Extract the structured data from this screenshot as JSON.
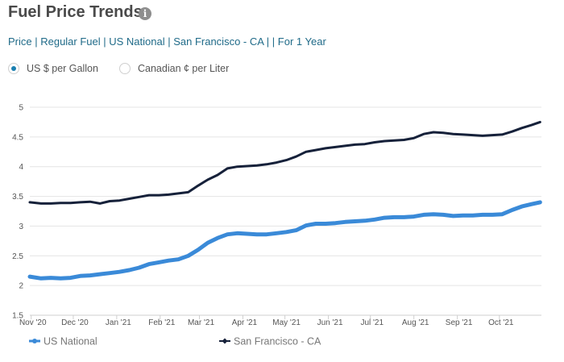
{
  "header": {
    "title": "Fuel Price Trends",
    "info_icon": "info-icon",
    "breadcrumb": "Price | Regular Fuel | US National | San Francisco - CA |  | For 1 Year"
  },
  "units": {
    "options": [
      {
        "label": "US $ per Gallon",
        "selected": true
      },
      {
        "label": "Canadian ¢ per Liter",
        "selected": false
      }
    ]
  },
  "colors": {
    "us_national": "#3a8ad8",
    "san_francisco": "#16213a",
    "accent": "#1a7fb0"
  },
  "chart_data": {
    "type": "line",
    "title": "",
    "xlabel": "",
    "ylabel": "",
    "ylim": [
      1.5,
      5
    ],
    "yticks": [
      "1.5",
      "2",
      "2.5",
      "3",
      "3.5",
      "4",
      "4.5",
      "5"
    ],
    "xlim": [
      "2020-10-31",
      "2021-10-31"
    ],
    "xticks": [
      {
        "label": "Nov '20",
        "date": "2020-11-01"
      },
      {
        "label": "Dec '20",
        "date": "2020-12-01"
      },
      {
        "label": "Jan '21",
        "date": "2021-01-01"
      },
      {
        "label": "Feb '21",
        "date": "2021-02-01"
      },
      {
        "label": "Mar '21",
        "date": "2021-03-01"
      },
      {
        "label": "Apr '21",
        "date": "2021-04-01"
      },
      {
        "label": "May '21",
        "date": "2021-05-01"
      },
      {
        "label": "Jun '21",
        "date": "2021-06-01"
      },
      {
        "label": "Jul '21",
        "date": "2021-07-01"
      },
      {
        "label": "Aug '21",
        "date": "2021-08-01"
      },
      {
        "label": "Sep '21",
        "date": "2021-09-01"
      },
      {
        "label": "Oct '21",
        "date": "2021-10-01"
      }
    ],
    "grid": true,
    "legend": "bottom-left",
    "series": [
      {
        "name": "US National",
        "color": "#3a8ad8",
        "points": [
          [
            "2020-10-31",
            2.15
          ],
          [
            "2020-11-08",
            2.12
          ],
          [
            "2020-11-15",
            2.13
          ],
          [
            "2020-11-22",
            2.12
          ],
          [
            "2020-11-29",
            2.13
          ],
          [
            "2020-12-06",
            2.16
          ],
          [
            "2020-12-13",
            2.17
          ],
          [
            "2020-12-20",
            2.19
          ],
          [
            "2020-12-27",
            2.21
          ],
          [
            "2021-01-03",
            2.23
          ],
          [
            "2021-01-10",
            2.26
          ],
          [
            "2021-01-17",
            2.3
          ],
          [
            "2021-01-24",
            2.36
          ],
          [
            "2021-01-31",
            2.39
          ],
          [
            "2021-02-07",
            2.42
          ],
          [
            "2021-02-14",
            2.44
          ],
          [
            "2021-02-21",
            2.5
          ],
          [
            "2021-02-28",
            2.6
          ],
          [
            "2021-03-07",
            2.72
          ],
          [
            "2021-03-14",
            2.8
          ],
          [
            "2021-03-21",
            2.86
          ],
          [
            "2021-03-28",
            2.88
          ],
          [
            "2021-04-04",
            2.87
          ],
          [
            "2021-04-11",
            2.86
          ],
          [
            "2021-04-18",
            2.86
          ],
          [
            "2021-04-25",
            2.88
          ],
          [
            "2021-05-02",
            2.9
          ],
          [
            "2021-05-09",
            2.93
          ],
          [
            "2021-05-16",
            3.01
          ],
          [
            "2021-05-23",
            3.04
          ],
          [
            "2021-05-30",
            3.04
          ],
          [
            "2021-06-06",
            3.05
          ],
          [
            "2021-06-13",
            3.07
          ],
          [
            "2021-06-20",
            3.08
          ],
          [
            "2021-06-27",
            3.09
          ],
          [
            "2021-07-04",
            3.11
          ],
          [
            "2021-07-11",
            3.14
          ],
          [
            "2021-07-18",
            3.15
          ],
          [
            "2021-07-25",
            3.15
          ],
          [
            "2021-08-01",
            3.16
          ],
          [
            "2021-08-08",
            3.19
          ],
          [
            "2021-08-15",
            3.2
          ],
          [
            "2021-08-22",
            3.19
          ],
          [
            "2021-08-29",
            3.17
          ],
          [
            "2021-09-05",
            3.18
          ],
          [
            "2021-09-12",
            3.18
          ],
          [
            "2021-09-19",
            3.19
          ],
          [
            "2021-09-26",
            3.19
          ],
          [
            "2021-10-03",
            3.2
          ],
          [
            "2021-10-10",
            3.27
          ],
          [
            "2021-10-17",
            3.33
          ],
          [
            "2021-10-24",
            3.37
          ],
          [
            "2021-10-30",
            3.4
          ]
        ]
      },
      {
        "name": "San Francisco - CA",
        "color": "#16213a",
        "points": [
          [
            "2020-10-31",
            3.4
          ],
          [
            "2020-11-08",
            3.38
          ],
          [
            "2020-11-15",
            3.38
          ],
          [
            "2020-11-22",
            3.39
          ],
          [
            "2020-11-29",
            3.39
          ],
          [
            "2020-12-06",
            3.4
          ],
          [
            "2020-12-13",
            3.41
          ],
          [
            "2020-12-20",
            3.38
          ],
          [
            "2020-12-27",
            3.42
          ],
          [
            "2021-01-03",
            3.43
          ],
          [
            "2021-01-10",
            3.46
          ],
          [
            "2021-01-17",
            3.49
          ],
          [
            "2021-01-24",
            3.52
          ],
          [
            "2021-01-31",
            3.52
          ],
          [
            "2021-02-07",
            3.53
          ],
          [
            "2021-02-14",
            3.55
          ],
          [
            "2021-02-21",
            3.57
          ],
          [
            "2021-02-28",
            3.68
          ],
          [
            "2021-03-07",
            3.78
          ],
          [
            "2021-03-14",
            3.86
          ],
          [
            "2021-03-21",
            3.97
          ],
          [
            "2021-03-28",
            4.0
          ],
          [
            "2021-04-04",
            4.01
          ],
          [
            "2021-04-11",
            4.02
          ],
          [
            "2021-04-18",
            4.04
          ],
          [
            "2021-04-25",
            4.07
          ],
          [
            "2021-05-02",
            4.11
          ],
          [
            "2021-05-09",
            4.17
          ],
          [
            "2021-05-16",
            4.25
          ],
          [
            "2021-05-23",
            4.28
          ],
          [
            "2021-05-30",
            4.31
          ],
          [
            "2021-06-06",
            4.33
          ],
          [
            "2021-06-13",
            4.35
          ],
          [
            "2021-06-20",
            4.37
          ],
          [
            "2021-06-27",
            4.38
          ],
          [
            "2021-07-04",
            4.41
          ],
          [
            "2021-07-11",
            4.43
          ],
          [
            "2021-07-18",
            4.44
          ],
          [
            "2021-07-25",
            4.45
          ],
          [
            "2021-08-01",
            4.48
          ],
          [
            "2021-08-08",
            4.55
          ],
          [
            "2021-08-15",
            4.58
          ],
          [
            "2021-08-22",
            4.57
          ],
          [
            "2021-08-29",
            4.55
          ],
          [
            "2021-09-05",
            4.54
          ],
          [
            "2021-09-12",
            4.53
          ],
          [
            "2021-09-19",
            4.52
          ],
          [
            "2021-09-26",
            4.53
          ],
          [
            "2021-10-03",
            4.54
          ],
          [
            "2021-10-10",
            4.59
          ],
          [
            "2021-10-17",
            4.65
          ],
          [
            "2021-10-24",
            4.7
          ],
          [
            "2021-10-30",
            4.75
          ]
        ]
      }
    ]
  }
}
